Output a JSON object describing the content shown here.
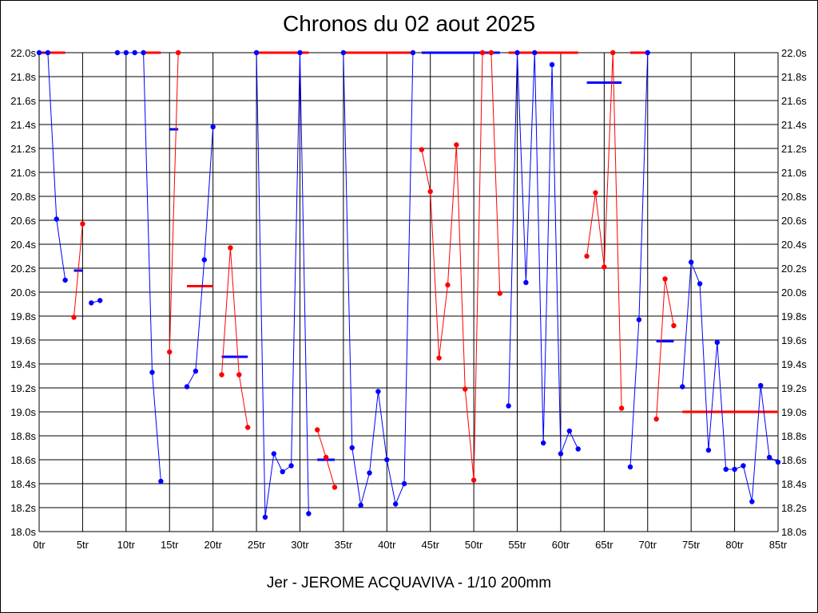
{
  "chart_data": {
    "type": "line",
    "title": "Chronos du 02 aout 2025",
    "xlabel": "Jer - JEROME ACQUAVIVA - 1/10 200mm",
    "ylabel": "",
    "xlim": [
      0,
      85
    ],
    "ylim": [
      18.0,
      22.0
    ],
    "x_ticks": [
      "0tr",
      "5tr",
      "10tr",
      "15tr",
      "20tr",
      "25tr",
      "30tr",
      "35tr",
      "40tr",
      "45tr",
      "50tr",
      "55tr",
      "60tr",
      "65tr",
      "70tr",
      "75tr",
      "80tr",
      "85tr"
    ],
    "y_ticks": [
      "18.0s",
      "18.2s",
      "18.4s",
      "18.6s",
      "18.8s",
      "19.0s",
      "19.2s",
      "19.4s",
      "19.6s",
      "19.8s",
      "20.0s",
      "20.2s",
      "20.4s",
      "20.6s",
      "20.8s",
      "21.0s",
      "21.2s",
      "21.4s",
      "21.6s",
      "21.8s",
      "22.0s"
    ],
    "grid": true,
    "colors": {
      "blue": "#0000ff",
      "red": "#ff0000",
      "grid": "#000000"
    },
    "segments": [
      {
        "color": "blue",
        "points": [
          [
            0,
            22.0
          ],
          [
            1,
            22.0
          ],
          [
            2,
            20.61
          ],
          [
            3,
            20.1
          ]
        ],
        "avg": {
          "from": 4,
          "to": 5,
          "y": 20.18
        }
      },
      {
        "color": "red",
        "points": [
          [
            4,
            19.79
          ],
          [
            5,
            20.57
          ]
        ]
      },
      {
        "color": "blue",
        "points": [
          [
            6,
            19.91
          ],
          [
            7,
            19.93
          ]
        ]
      },
      {
        "color": "red",
        "points": [],
        "avg": {
          "from": 0,
          "to": 3,
          "y": 22.0
        }
      },
      {
        "color": "blue",
        "points": [
          [
            9,
            22.0
          ],
          [
            10,
            22.0
          ],
          [
            11,
            22.0
          ],
          [
            12,
            22.0
          ],
          [
            13,
            19.33
          ],
          [
            14,
            18.42
          ]
        ]
      },
      {
        "color": "red",
        "points": [],
        "avg": {
          "from": 12,
          "to": 14,
          "y": 22.0
        }
      },
      {
        "color": "red",
        "points": [
          [
            15,
            19.5
          ],
          [
            16,
            22.0
          ]
        ]
      },
      {
        "color": "blue",
        "points": [],
        "avg": {
          "from": 15,
          "to": 16,
          "y": 21.36
        }
      },
      {
        "color": "red",
        "points": [],
        "avg": {
          "from": 17,
          "to": 20,
          "y": 20.05
        }
      },
      {
        "color": "blue",
        "points": [
          [
            17,
            19.21
          ],
          [
            18,
            19.34
          ],
          [
            19,
            20.27
          ],
          [
            20,
            21.38
          ]
        ]
      },
      {
        "color": "red",
        "points": [
          [
            21,
            19.31
          ],
          [
            22,
            20.37
          ],
          [
            23,
            19.31
          ],
          [
            24,
            18.87
          ]
        ]
      },
      {
        "color": "blue",
        "points": [],
        "avg": {
          "from": 21,
          "to": 24,
          "y": 19.46
        }
      },
      {
        "color": "blue",
        "points": [
          [
            25,
            22.0
          ],
          [
            26,
            18.12
          ],
          [
            27,
            18.65
          ],
          [
            28,
            18.5
          ],
          [
            29,
            18.55
          ],
          [
            30,
            22.0
          ],
          [
            31,
            18.15
          ]
        ]
      },
      {
        "color": "red",
        "points": [],
        "avg": {
          "from": 25,
          "to": 31,
          "y": 22.0
        }
      },
      {
        "color": "red",
        "points": [
          [
            32,
            18.85
          ],
          [
            33,
            18.62
          ],
          [
            34,
            18.37
          ]
        ]
      },
      {
        "color": "blue",
        "points": [],
        "avg": {
          "from": 32,
          "to": 34,
          "y": 18.6
        }
      },
      {
        "color": "blue",
        "points": [
          [
            35,
            22.0
          ],
          [
            36,
            18.7
          ],
          [
            37,
            18.22
          ],
          [
            38,
            18.49
          ],
          [
            39,
            19.17
          ],
          [
            40,
            18.6
          ],
          [
            41,
            18.23
          ],
          [
            42,
            18.4
          ],
          [
            43,
            22.0
          ]
        ]
      },
      {
        "color": "red",
        "points": [],
        "avg": {
          "from": 35,
          "to": 43,
          "y": 22.0
        }
      },
      {
        "color": "blue",
        "points": [],
        "avg": {
          "from": 44,
          "to": 53,
          "y": 22.0
        }
      },
      {
        "color": "red",
        "points": [
          [
            44,
            21.19
          ],
          [
            45,
            20.84
          ],
          [
            46,
            19.45
          ],
          [
            47,
            20.06
          ],
          [
            48,
            21.23
          ],
          [
            49,
            19.19
          ],
          [
            50,
            18.43
          ],
          [
            51,
            22.0
          ],
          [
            52,
            22.0
          ],
          [
            53,
            19.99
          ]
        ]
      },
      {
        "color": "blue",
        "points": [
          [
            54,
            19.05
          ],
          [
            55,
            22.0
          ],
          [
            56,
            20.08
          ],
          [
            57,
            22.0
          ],
          [
            58,
            18.74
          ],
          [
            59,
            21.9
          ],
          [
            60,
            18.65
          ],
          [
            61,
            18.84
          ],
          [
            62,
            18.69
          ]
        ]
      },
      {
        "color": "red",
        "points": [],
        "avg": {
          "from": 54,
          "to": 62,
          "y": 22.0
        }
      },
      {
        "color": "red",
        "points": [
          [
            63,
            20.3
          ],
          [
            64,
            20.83
          ],
          [
            65,
            20.21
          ],
          [
            66,
            22.0
          ],
          [
            67,
            19.03
          ]
        ]
      },
      {
        "color": "blue",
        "points": [],
        "avg": {
          "from": 63,
          "to": 67,
          "y": 21.75
        }
      },
      {
        "color": "blue",
        "points": [
          [
            68,
            18.54
          ],
          [
            69,
            19.77
          ],
          [
            70,
            22.0
          ]
        ]
      },
      {
        "color": "red",
        "points": [],
        "avg": {
          "from": 68,
          "to": 70,
          "y": 22.0
        }
      },
      {
        "color": "red",
        "points": [
          [
            71,
            18.94
          ],
          [
            72,
            20.11
          ],
          [
            73,
            19.72
          ]
        ]
      },
      {
        "color": "blue",
        "points": [],
        "avg": {
          "from": 71,
          "to": 73,
          "y": 19.59
        }
      },
      {
        "color": "blue",
        "points": [
          [
            74,
            19.21
          ],
          [
            75,
            20.25
          ],
          [
            76,
            20.07
          ],
          [
            77,
            18.68
          ],
          [
            78,
            19.58
          ],
          [
            79,
            18.52
          ],
          [
            80,
            18.52
          ],
          [
            81,
            18.55
          ],
          [
            82,
            18.25
          ],
          [
            83,
            19.22
          ],
          [
            84,
            18.62
          ],
          [
            85,
            18.58
          ]
        ]
      },
      {
        "color": "red",
        "points": [],
        "avg": {
          "from": 74,
          "to": 85,
          "y": 19.0
        }
      }
    ]
  }
}
